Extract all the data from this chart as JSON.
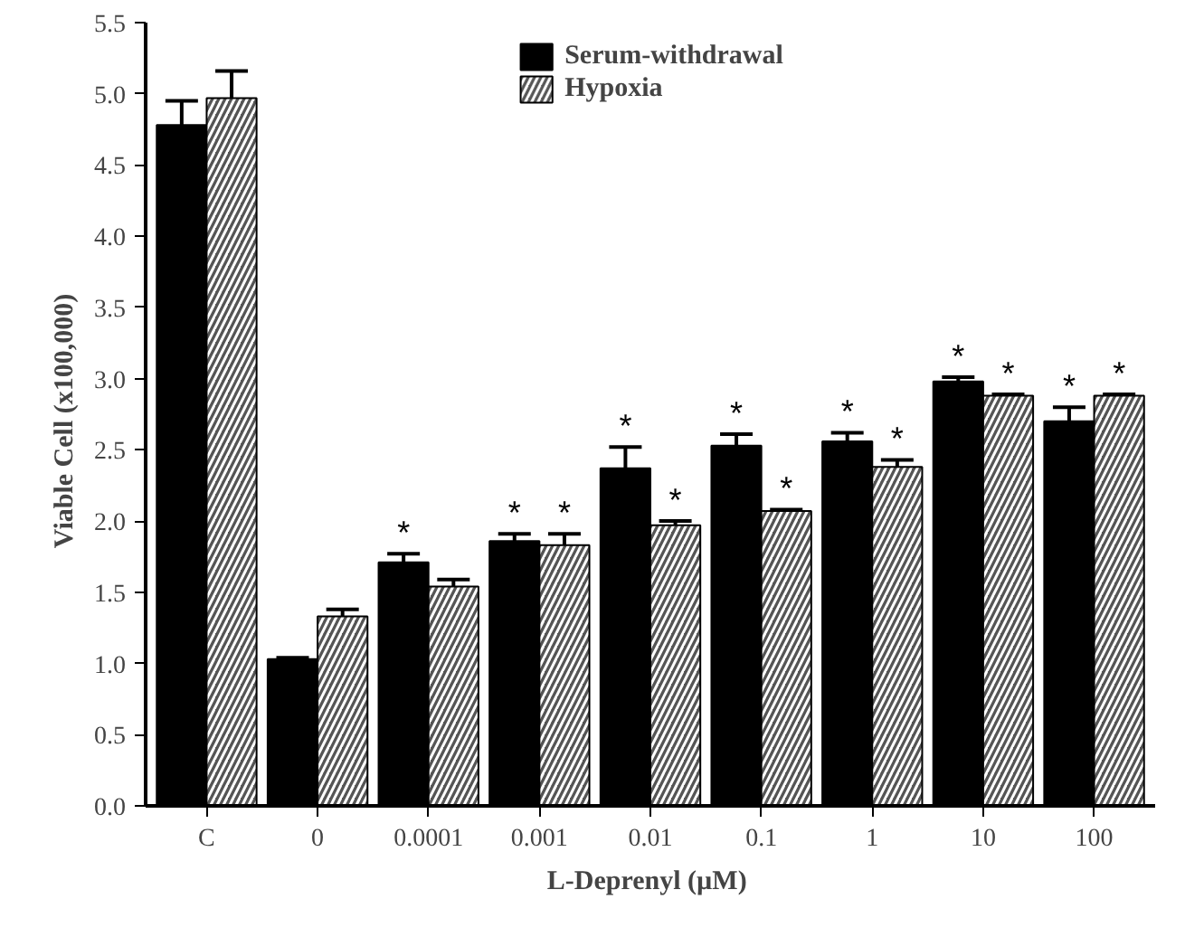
{
  "chart_data": {
    "type": "bar",
    "xlabel": "L-Deprenyl  (µM)",
    "ylabel": "Viable  Cell  (x100,000)",
    "categories": [
      "C",
      "0",
      "0.0001",
      "0.001",
      "0.01",
      "0.1",
      "1",
      "10",
      "100"
    ],
    "series": [
      {
        "name": "Serum-withdrawal",
        "color": "#000000",
        "values": [
          4.78,
          1.03,
          1.71,
          1.86,
          2.37,
          2.53,
          2.56,
          2.98,
          2.7
        ],
        "errors": [
          0.17,
          0.01,
          0.06,
          0.05,
          0.15,
          0.08,
          0.06,
          0.03,
          0.1
        ],
        "value_labels": [
          null,
          null,
          "*",
          "*",
          "*",
          "*",
          "*",
          "*",
          "*"
        ]
      },
      {
        "name": "Hypoxia",
        "color": "#555555",
        "values": [
          4.97,
          1.33,
          1.54,
          1.83,
          1.97,
          2.07,
          2.38,
          2.88,
          2.88
        ],
        "errors": [
          0.19,
          0.05,
          0.05,
          0.08,
          0.03,
          0.01,
          0.05,
          0.01,
          0.01
        ],
        "value_labels": [
          null,
          null,
          null,
          "*",
          "*",
          "*",
          "*",
          "*",
          "*"
        ]
      }
    ],
    "ylim": [
      0,
      5.5
    ],
    "yticks": [
      {
        "value": 0,
        "label": "0.0"
      },
      0.5,
      {
        "value": 1,
        "label": "1.0"
      },
      1.5,
      {
        "value": 2,
        "label": "2.0"
      },
      2.5,
      {
        "value": 3,
        "label": "3.0"
      },
      3.5,
      {
        "value": 4,
        "label": "4.0"
      },
      4.5,
      {
        "value": 5,
        "label": "5.0"
      },
      5.5
    ],
    "legend": "top",
    "grid": false
  }
}
